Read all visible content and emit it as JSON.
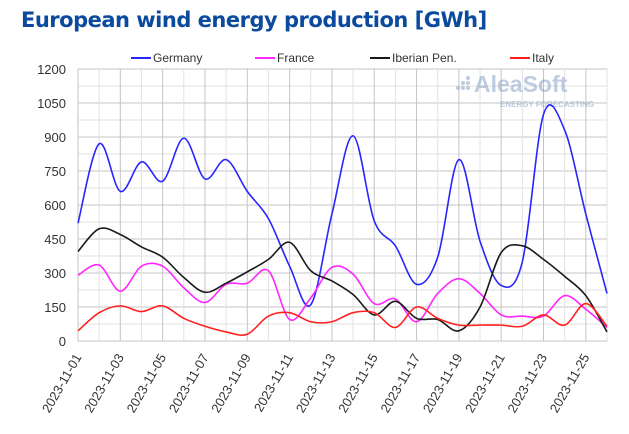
{
  "chart_data": {
    "type": "line",
    "title": "European wind energy production [GWh]",
    "xlabel": "",
    "ylabel": "",
    "ylim": [
      0,
      1200
    ],
    "yticks": [
      "0",
      "150",
      "300",
      "450",
      "600",
      "750",
      "900",
      "1050",
      "1200"
    ],
    "x": [
      "2023-11-01",
      "2023-11-02",
      "2023-11-03",
      "2023-11-04",
      "2023-11-05",
      "2023-11-06",
      "2023-11-07",
      "2023-11-08",
      "2023-11-09",
      "2023-11-10",
      "2023-11-11",
      "2023-11-12",
      "2023-11-13",
      "2023-11-14",
      "2023-11-15",
      "2023-11-16",
      "2023-11-17",
      "2023-11-18",
      "2023-11-19",
      "2023-11-20",
      "2023-11-21",
      "2023-11-22",
      "2023-11-23",
      "2023-11-24",
      "2023-11-25",
      "2023-11-26"
    ],
    "xtick_labels": [
      "2023-11-01",
      "2023-11-03",
      "2023-11-05",
      "2023-11-07",
      "2023-11-09",
      "2023-11-11",
      "2023-11-13",
      "2023-11-15",
      "2023-11-17",
      "2023-11-19",
      "2023-11-21",
      "2023-11-23",
      "2023-11-25"
    ],
    "grid": true,
    "legend_position": "top",
    "series": [
      {
        "name": "Germany",
        "color": "#2626ff",
        "values": [
          520,
          870,
          660,
          790,
          705,
          895,
          715,
          800,
          660,
          540,
          330,
          160,
          560,
          905,
          530,
          420,
          250,
          370,
          800,
          440,
          245,
          350,
          1000,
          930,
          560,
          210
        ]
      },
      {
        "name": "France",
        "color": "#ff26ff",
        "values": [
          290,
          335,
          220,
          330,
          330,
          235,
          170,
          250,
          255,
          310,
          95,
          190,
          325,
          295,
          165,
          185,
          85,
          210,
          275,
          210,
          115,
          110,
          110,
          200,
          140,
          60
        ]
      },
      {
        "name": "Iberian Pen.",
        "color": "#1a1a1a",
        "values": [
          395,
          495,
          470,
          415,
          370,
          280,
          215,
          255,
          305,
          360,
          435,
          310,
          265,
          205,
          115,
          175,
          100,
          95,
          45,
          150,
          390,
          420,
          360,
          285,
          200,
          40
        ]
      },
      {
        "name": "Italy",
        "color": "#ff2020",
        "values": [
          45,
          125,
          155,
          130,
          155,
          100,
          65,
          40,
          30,
          110,
          125,
          85,
          85,
          125,
          125,
          60,
          150,
          100,
          70,
          70,
          70,
          65,
          115,
          70,
          165,
          65
        ]
      }
    ]
  },
  "watermark": {
    "brand": "AleaSoft",
    "tagline": "ENERGY FORECASTING"
  }
}
